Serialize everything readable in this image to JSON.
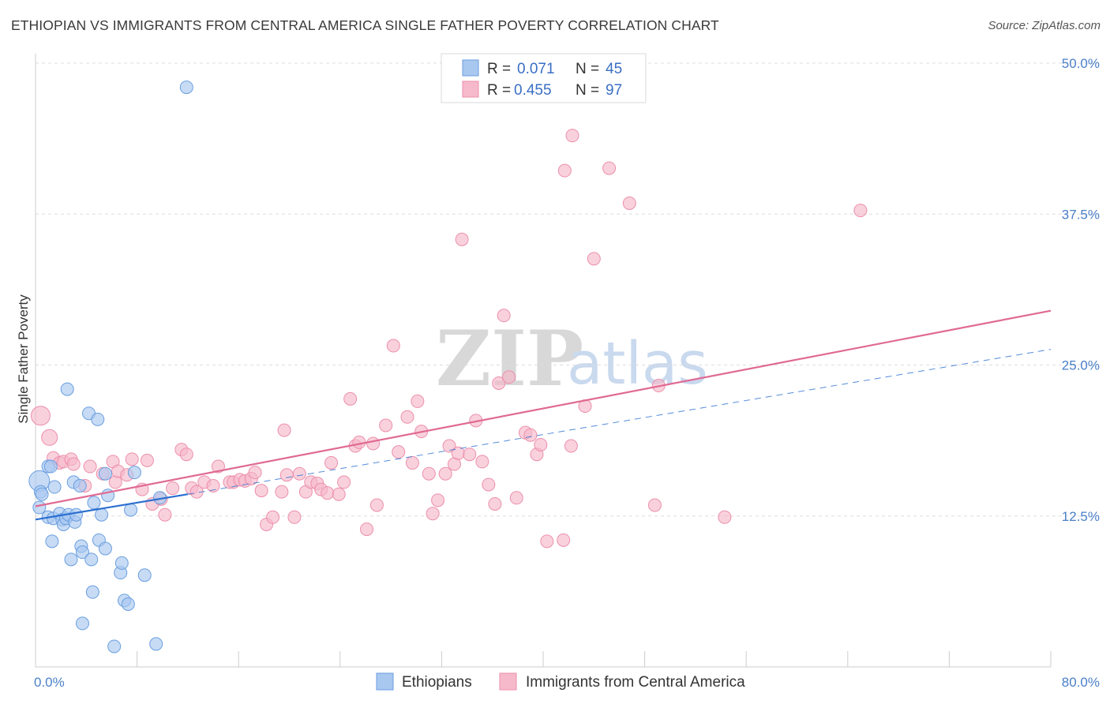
{
  "title": "ETHIOPIAN VS IMMIGRANTS FROM CENTRAL AMERICA SINGLE FATHER POVERTY CORRELATION CHART",
  "source": "Source: ZipAtlas.com",
  "colors": {
    "blue_fill": "#a9c8f0",
    "blue_stroke": "#6a9ee0",
    "blue_line": "#2a6fd0",
    "pink_fill": "#f6b9cb",
    "pink_stroke": "#ec8fab",
    "pink_line": "#e06a93",
    "tick_text": "#4a7fc8",
    "grid": "#dddddd"
  },
  "legend": {
    "r_label": "R =",
    "n_label": "N =",
    "series": [
      {
        "r": "0.071",
        "n": "45"
      },
      {
        "r": "0.455",
        "n": "97"
      }
    ]
  },
  "watermark": {
    "zip": "ZIP",
    "atlas": "atlas"
  },
  "chart_data": {
    "type": "scatter",
    "ylabel": "Single Father Poverty",
    "xlim": [
      0,
      80
    ],
    "ylim": [
      0,
      50
    ],
    "x_ticks": [
      "0.0%",
      "80.0%"
    ],
    "y_ticks": [
      {
        "value": 12.5,
        "label": "12.5%"
      },
      {
        "value": 25.0,
        "label": "25.0%"
      },
      {
        "value": 37.5,
        "label": "37.5%"
      },
      {
        "value": 50.0,
        "label": "50.0%"
      }
    ],
    "legend_position": "top-center",
    "grid": true,
    "series": [
      {
        "name": "Ethiopians",
        "points": [
          [
            0.3,
            15.4
          ],
          [
            0.3,
            13.2
          ],
          [
            0.4,
            14.5
          ],
          [
            0.5,
            14.3
          ],
          [
            1.0,
            16.6
          ],
          [
            1.2,
            16.6
          ],
          [
            1.0,
            12.4
          ],
          [
            1.4,
            12.3
          ],
          [
            1.5,
            14.9
          ],
          [
            1.3,
            10.4
          ],
          [
            1.9,
            12.7
          ],
          [
            2.1,
            12.2
          ],
          [
            2.2,
            11.8
          ],
          [
            2.4,
            12.3
          ],
          [
            2.5,
            23.0
          ],
          [
            2.6,
            12.6
          ],
          [
            2.8,
            8.9
          ],
          [
            3.1,
            12.0
          ],
          [
            3.2,
            12.6
          ],
          [
            3.0,
            15.3
          ],
          [
            3.5,
            15.0
          ],
          [
            3.6,
            10.0
          ],
          [
            3.7,
            9.5
          ],
          [
            3.7,
            3.6
          ],
          [
            4.2,
            21.0
          ],
          [
            4.4,
            8.9
          ],
          [
            4.5,
            6.2
          ],
          [
            4.6,
            13.6
          ],
          [
            4.9,
            20.5
          ],
          [
            5.0,
            10.5
          ],
          [
            5.2,
            12.6
          ],
          [
            5.5,
            9.8
          ],
          [
            5.5,
            16.0
          ],
          [
            5.7,
            14.2
          ],
          [
            6.2,
            1.7
          ],
          [
            6.7,
            7.8
          ],
          [
            6.8,
            8.6
          ],
          [
            7.0,
            5.5
          ],
          [
            7.3,
            5.2
          ],
          [
            7.5,
            13.0
          ],
          [
            7.8,
            16.1
          ],
          [
            8.6,
            7.6
          ],
          [
            9.5,
            1.9
          ],
          [
            9.8,
            14.0
          ],
          [
            11.9,
            48.0
          ]
        ],
        "trend": {
          "x": [
            0,
            12
          ],
          "y": [
            12.2,
            14.3
          ]
        },
        "trend_extended": {
          "x": [
            12,
            80
          ],
          "y": [
            14.3,
            26.3
          ]
        }
      },
      {
        "name": "Immigrants from Central America",
        "points": [
          [
            0.4,
            20.8
          ],
          [
            1.1,
            19.0
          ],
          [
            1.4,
            17.3
          ],
          [
            1.9,
            16.9
          ],
          [
            2.2,
            17.0
          ],
          [
            2.8,
            17.2
          ],
          [
            3.0,
            16.8
          ],
          [
            3.9,
            15.0
          ],
          [
            4.3,
            16.6
          ],
          [
            5.3,
            16.0
          ],
          [
            6.1,
            17.0
          ],
          [
            6.3,
            15.3
          ],
          [
            6.5,
            16.2
          ],
          [
            7.2,
            15.9
          ],
          [
            7.6,
            17.2
          ],
          [
            8.4,
            14.7
          ],
          [
            8.8,
            17.1
          ],
          [
            9.2,
            13.5
          ],
          [
            9.9,
            13.9
          ],
          [
            10.2,
            12.6
          ],
          [
            10.8,
            14.8
          ],
          [
            11.5,
            18.0
          ],
          [
            11.9,
            17.6
          ],
          [
            12.3,
            14.8
          ],
          [
            12.7,
            14.5
          ],
          [
            13.3,
            15.3
          ],
          [
            14.0,
            15.0
          ],
          [
            14.4,
            16.6
          ],
          [
            15.3,
            15.3
          ],
          [
            15.6,
            15.3
          ],
          [
            16.1,
            15.5
          ],
          [
            16.5,
            15.4
          ],
          [
            17.0,
            15.6
          ],
          [
            17.3,
            16.1
          ],
          [
            17.8,
            14.6
          ],
          [
            18.2,
            11.8
          ],
          [
            18.7,
            12.4
          ],
          [
            19.4,
            14.5
          ],
          [
            19.6,
            19.6
          ],
          [
            19.8,
            15.9
          ],
          [
            20.4,
            12.4
          ],
          [
            20.8,
            16.0
          ],
          [
            21.3,
            14.5
          ],
          [
            21.7,
            15.3
          ],
          [
            22.2,
            15.2
          ],
          [
            22.5,
            14.7
          ],
          [
            23.0,
            14.4
          ],
          [
            23.3,
            16.9
          ],
          [
            23.9,
            14.3
          ],
          [
            24.3,
            15.3
          ],
          [
            24.8,
            22.2
          ],
          [
            25.2,
            18.3
          ],
          [
            25.5,
            18.6
          ],
          [
            26.1,
            11.4
          ],
          [
            26.6,
            18.5
          ],
          [
            26.9,
            13.4
          ],
          [
            27.6,
            20.0
          ],
          [
            28.2,
            26.6
          ],
          [
            28.6,
            17.8
          ],
          [
            29.3,
            20.7
          ],
          [
            29.7,
            16.9
          ],
          [
            30.1,
            22.0
          ],
          [
            30.4,
            19.5
          ],
          [
            31.0,
            16.0
          ],
          [
            31.3,
            12.7
          ],
          [
            31.7,
            13.8
          ],
          [
            32.3,
            16.0
          ],
          [
            32.6,
            18.3
          ],
          [
            33.0,
            16.8
          ],
          [
            33.6,
            35.4
          ],
          [
            33.3,
            17.7
          ],
          [
            34.2,
            17.6
          ],
          [
            34.7,
            20.4
          ],
          [
            35.2,
            17.0
          ],
          [
            35.7,
            15.1
          ],
          [
            36.2,
            13.5
          ],
          [
            36.5,
            23.5
          ],
          [
            36.9,
            29.1
          ],
          [
            37.3,
            24.0
          ],
          [
            37.9,
            14.0
          ],
          [
            38.6,
            19.4
          ],
          [
            39.0,
            19.2
          ],
          [
            39.5,
            17.6
          ],
          [
            39.8,
            18.4
          ],
          [
            40.3,
            10.4
          ],
          [
            41.6,
            10.5
          ],
          [
            41.7,
            41.1
          ],
          [
            42.2,
            18.3
          ],
          [
            42.3,
            44.0
          ],
          [
            43.3,
            21.6
          ],
          [
            44.0,
            33.8
          ],
          [
            45.2,
            41.3
          ],
          [
            46.8,
            38.4
          ],
          [
            48.8,
            13.4
          ],
          [
            49.1,
            23.3
          ],
          [
            54.3,
            12.4
          ],
          [
            65.0,
            37.8
          ]
        ],
        "trend": {
          "x": [
            0,
            80
          ],
          "y": [
            13.3,
            29.5
          ]
        }
      }
    ]
  }
}
